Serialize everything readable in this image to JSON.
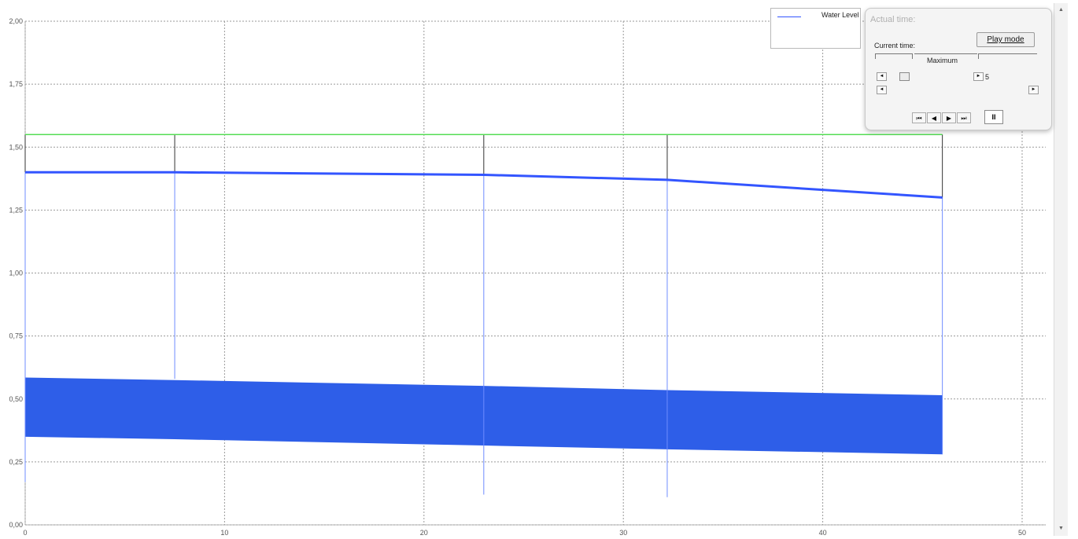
{
  "chart_data": {
    "type": "line",
    "xlim": [
      0,
      50
    ],
    "ylim": [
      0,
      2
    ],
    "x_ticks": [
      "0",
      "10",
      "20",
      "30",
      "40",
      "50"
    ],
    "y_ticks": [
      "0,00",
      "0,25",
      "0,50",
      "0,75",
      "1,00",
      "1,25",
      "1,50",
      "1,75",
      "2,00"
    ],
    "grid": true,
    "legend_position": "top-right",
    "series": [
      {
        "name": "Water Level",
        "color": "#3355ff",
        "x": [
          0,
          7.5,
          23,
          32.2,
          46
        ],
        "y": [
          1.4,
          1.4,
          1.39,
          1.37,
          1.3
        ]
      }
    ],
    "top_line": {
      "color": "#55dd55",
      "x": [
        0,
        46
      ],
      "y": [
        1.55,
        1.55
      ]
    },
    "band": {
      "color": "#2e5ee8",
      "x": [
        0,
        7.5,
        23,
        32.2,
        46
      ],
      "upper": [
        0.585,
        0.575,
        0.552,
        0.535,
        0.515
      ],
      "lower": [
        0.35,
        0.34,
        0.315,
        0.3,
        0.28
      ]
    },
    "sections": [
      {
        "x": 0,
        "top": 1.55,
        "bottom": 0.17
      },
      {
        "x": 7.5,
        "top": 1.55,
        "bottom": 0.58
      },
      {
        "x": 23,
        "top": 1.55,
        "bottom": 0.12
      },
      {
        "x": 32.2,
        "top": 1.55,
        "bottom": 0.11
      },
      {
        "x": 46,
        "top": 1.55,
        "bottom": 0.28
      }
    ]
  },
  "panel": {
    "title": "Actual time:",
    "current_time_label": "Current time:",
    "maximum_label": "Maximum",
    "maximum_value": "5",
    "play_mode_label": "Play mode",
    "btn_first": "⏮",
    "btn_prev": "◀",
    "btn_next": "▶",
    "btn_last": "⏭",
    "btn_pause": "II"
  },
  "scrollbar": {
    "up": "▲",
    "down": "▼"
  }
}
